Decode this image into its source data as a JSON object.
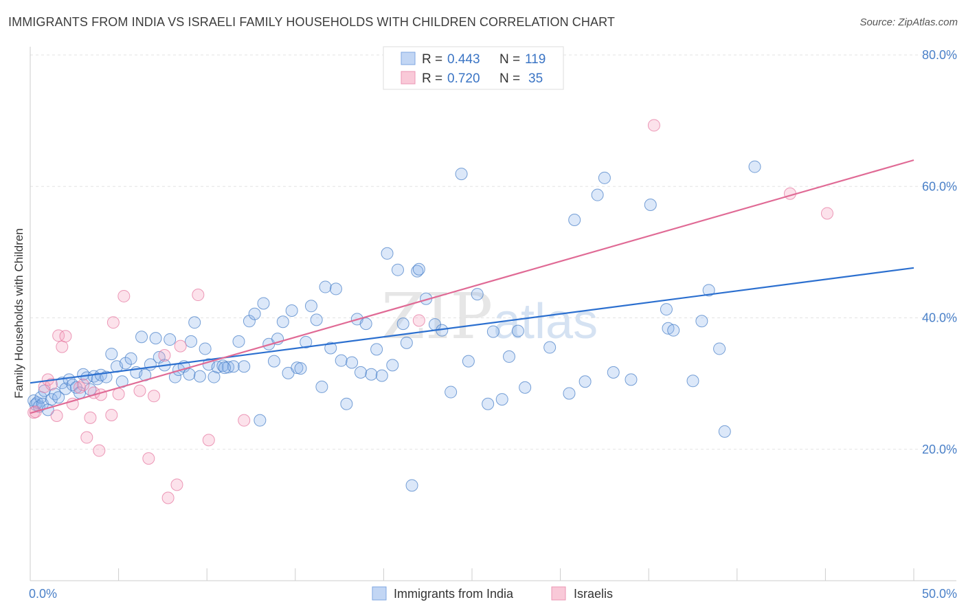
{
  "header": {
    "title": "IMMIGRANTS FROM INDIA VS ISRAELI FAMILY HOUSEHOLDS WITH CHILDREN CORRELATION CHART",
    "source": "Source: ZipAtlas.com"
  },
  "watermark": {
    "zip": "ZIP",
    "atlas": "atlas"
  },
  "legend": {
    "rows": [
      {
        "r_label": "R =",
        "r_value": "0.443",
        "n_label": "N =",
        "n_value": "119"
      },
      {
        "r_label": "R =",
        "r_value": "0.720",
        "n_label": "N =",
        "n_value": "35"
      }
    ]
  },
  "chart_data": {
    "type": "scatter",
    "ylabel": "Family Households with Children",
    "xlim": [
      0,
      50
    ],
    "ylim": [
      0,
      80
    ],
    "x_tick_labels": [
      {
        "value": 0,
        "label": "0.0%"
      },
      {
        "value": 50,
        "label": "50.0%"
      }
    ],
    "y_tick_labels": [
      {
        "value": 20,
        "label": "20.0%"
      },
      {
        "value": 40,
        "label": "40.0%"
      },
      {
        "value": 60,
        "label": "60.0%"
      },
      {
        "value": 80,
        "label": "80.0%"
      }
    ],
    "grid": true,
    "colors": {
      "india": "#6a9ee0",
      "israelis": "#f08fb0",
      "india_line": "#2b6fcf",
      "israelis_line": "#e06a95"
    },
    "series": [
      {
        "name": "Immigrants from India",
        "trend": {
          "x": [
            0,
            50
          ],
          "y": [
            30.1,
            47.6
          ]
        },
        "points": [
          [
            0.2,
            27.4
          ],
          [
            0.3,
            26.8
          ],
          [
            0.4,
            27.1
          ],
          [
            0.5,
            26.5
          ],
          [
            0.6,
            27.9
          ],
          [
            0.7,
            26.9
          ],
          [
            0.8,
            28.9
          ],
          [
            1.0,
            26.0
          ],
          [
            1.2,
            27.6
          ],
          [
            1.4,
            28.4
          ],
          [
            1.6,
            27.9
          ],
          [
            1.8,
            30.1
          ],
          [
            2.0,
            29.2
          ],
          [
            2.2,
            30.6
          ],
          [
            2.4,
            29.8
          ],
          [
            2.6,
            29.4
          ],
          [
            2.8,
            28.6
          ],
          [
            3.0,
            31.4
          ],
          [
            3.2,
            30.9
          ],
          [
            3.4,
            29.1
          ],
          [
            3.6,
            31.1
          ],
          [
            3.8,
            30.7
          ],
          [
            4.0,
            31.3
          ],
          [
            4.3,
            31.0
          ],
          [
            4.6,
            34.5
          ],
          [
            4.9,
            32.6
          ],
          [
            5.2,
            30.3
          ],
          [
            5.4,
            33.1
          ],
          [
            5.7,
            33.8
          ],
          [
            6.0,
            31.7
          ],
          [
            6.3,
            37.1
          ],
          [
            6.5,
            31.3
          ],
          [
            6.8,
            32.9
          ],
          [
            7.1,
            36.9
          ],
          [
            7.3,
            34.0
          ],
          [
            7.6,
            32.8
          ],
          [
            7.9,
            36.7
          ],
          [
            8.2,
            31.0
          ],
          [
            8.4,
            32.1
          ],
          [
            8.7,
            32.6
          ],
          [
            9.0,
            31.4
          ],
          [
            9.1,
            36.4
          ],
          [
            9.3,
            39.3
          ],
          [
            9.6,
            31.1
          ],
          [
            9.9,
            35.3
          ],
          [
            10.1,
            32.9
          ],
          [
            10.4,
            31.0
          ],
          [
            10.6,
            32.5
          ],
          [
            10.9,
            32.7
          ],
          [
            11.2,
            32.5
          ],
          [
            11.5,
            32.6
          ],
          [
            11.8,
            36.4
          ],
          [
            12.1,
            32.6
          ],
          [
            12.4,
            39.5
          ],
          [
            12.7,
            40.6
          ],
          [
            13.0,
            24.4
          ],
          [
            13.2,
            42.2
          ],
          [
            13.5,
            36.0
          ],
          [
            13.8,
            33.4
          ],
          [
            14.0,
            36.8
          ],
          [
            14.3,
            39.4
          ],
          [
            14.6,
            31.6
          ],
          [
            14.8,
            41.1
          ],
          [
            15.1,
            32.4
          ],
          [
            15.3,
            32.3
          ],
          [
            15.6,
            36.3
          ],
          [
            15.9,
            41.8
          ],
          [
            16.2,
            39.7
          ],
          [
            16.5,
            29.5
          ],
          [
            16.7,
            44.7
          ],
          [
            17.0,
            35.4
          ],
          [
            17.3,
            44.4
          ],
          [
            17.6,
            33.5
          ],
          [
            17.9,
            26.9
          ],
          [
            18.2,
            33.2
          ],
          [
            18.5,
            39.8
          ],
          [
            18.7,
            31.7
          ],
          [
            19.0,
            39.1
          ],
          [
            19.3,
            31.4
          ],
          [
            19.6,
            35.2
          ],
          [
            19.9,
            31.2
          ],
          [
            20.2,
            49.8
          ],
          [
            20.5,
            32.8
          ],
          [
            20.8,
            47.3
          ],
          [
            21.1,
            39.1
          ],
          [
            21.3,
            36.2
          ],
          [
            21.6,
            14.5
          ],
          [
            21.9,
            47.1
          ],
          [
            22.0,
            47.4
          ],
          [
            22.4,
            42.9
          ],
          [
            22.9,
            39.0
          ],
          [
            23.3,
            38.1
          ],
          [
            23.8,
            28.7
          ],
          [
            24.4,
            61.9
          ],
          [
            24.8,
            33.4
          ],
          [
            25.3,
            43.6
          ],
          [
            25.9,
            26.9
          ],
          [
            26.2,
            37.9
          ],
          [
            26.7,
            27.6
          ],
          [
            27.1,
            34.1
          ],
          [
            27.6,
            38.0
          ],
          [
            28.0,
            29.4
          ],
          [
            29.4,
            35.5
          ],
          [
            30.5,
            28.5
          ],
          [
            30.8,
            54.9
          ],
          [
            31.4,
            30.3
          ],
          [
            32.1,
            58.7
          ],
          [
            32.5,
            61.3
          ],
          [
            33.0,
            31.7
          ],
          [
            34.0,
            30.6
          ],
          [
            35.1,
            57.2
          ],
          [
            36.0,
            41.3
          ],
          [
            36.1,
            38.4
          ],
          [
            36.4,
            38.1
          ],
          [
            37.5,
            30.4
          ],
          [
            38.0,
            39.5
          ],
          [
            38.4,
            44.2
          ],
          [
            39.0,
            35.3
          ],
          [
            39.3,
            22.7
          ],
          [
            41.0,
            63.0
          ],
          [
            11.0,
            32.4
          ]
        ]
      },
      {
        "name": "Israelis",
        "trend": {
          "x": [
            0,
            50
          ],
          "y": [
            25.5,
            64.0
          ]
        },
        "points": [
          [
            0.2,
            25.6
          ],
          [
            0.3,
            25.7
          ],
          [
            0.8,
            29.5
          ],
          [
            1.0,
            30.6
          ],
          [
            1.2,
            29.9
          ],
          [
            1.5,
            25.1
          ],
          [
            1.6,
            37.3
          ],
          [
            1.8,
            35.6
          ],
          [
            2.0,
            37.2
          ],
          [
            2.4,
            26.9
          ],
          [
            2.8,
            29.4
          ],
          [
            3.0,
            29.8
          ],
          [
            3.2,
            21.8
          ],
          [
            3.4,
            24.8
          ],
          [
            3.6,
            28.6
          ],
          [
            3.9,
            19.8
          ],
          [
            4.0,
            28.3
          ],
          [
            4.6,
            25.2
          ],
          [
            4.7,
            39.3
          ],
          [
            5.0,
            28.4
          ],
          [
            5.3,
            43.3
          ],
          [
            6.2,
            28.9
          ],
          [
            6.7,
            18.6
          ],
          [
            7.0,
            28.1
          ],
          [
            7.6,
            34.3
          ],
          [
            7.8,
            12.6
          ],
          [
            8.3,
            14.6
          ],
          [
            8.5,
            35.7
          ],
          [
            9.5,
            43.5
          ],
          [
            10.1,
            21.4
          ],
          [
            12.1,
            24.4
          ],
          [
            22.0,
            39.6
          ],
          [
            35.3,
            69.3
          ],
          [
            43.0,
            58.9
          ],
          [
            45.1,
            55.9
          ]
        ]
      }
    ]
  }
}
